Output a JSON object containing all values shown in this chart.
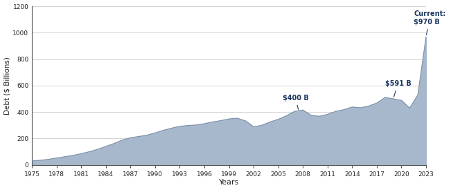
{
  "title": "",
  "xlabel": "Years",
  "ylabel": "Debt ($ Billions)",
  "xlim": [
    1975,
    2023
  ],
  "ylim": [
    0,
    1200
  ],
  "yticks": [
    0,
    200,
    400,
    600,
    800,
    1000,
    1200
  ],
  "xticks": [
    1975,
    1978,
    1981,
    1984,
    1987,
    1990,
    1993,
    1996,
    1999,
    2002,
    2005,
    2008,
    2011,
    2014,
    2017,
    2020,
    2023
  ],
  "fill_color": "#a8b8cc",
  "line_color": "#7a90a8",
  "background_color": "#ffffff",
  "grid_color": "#cccccc",
  "years": [
    1975,
    1976,
    1977,
    1978,
    1979,
    1980,
    1981,
    1982,
    1983,
    1984,
    1985,
    1986,
    1987,
    1988,
    1989,
    1990,
    1991,
    1992,
    1993,
    1994,
    1995,
    1996,
    1997,
    1998,
    1999,
    2000,
    2001,
    2002,
    2003,
    2004,
    2005,
    2006,
    2007,
    2008,
    2009,
    2010,
    2011,
    2012,
    2013,
    2014,
    2015,
    2016,
    2017,
    2018,
    2019,
    2020,
    2021,
    2022,
    2023
  ],
  "values": [
    30,
    35,
    42,
    52,
    62,
    72,
    85,
    100,
    118,
    140,
    162,
    188,
    205,
    215,
    225,
    242,
    262,
    278,
    292,
    298,
    302,
    312,
    325,
    335,
    348,
    353,
    333,
    288,
    300,
    325,
    345,
    372,
    405,
    415,
    375,
    368,
    382,
    405,
    418,
    438,
    432,
    445,
    468,
    510,
    500,
    488,
    430,
    530,
    970
  ]
}
